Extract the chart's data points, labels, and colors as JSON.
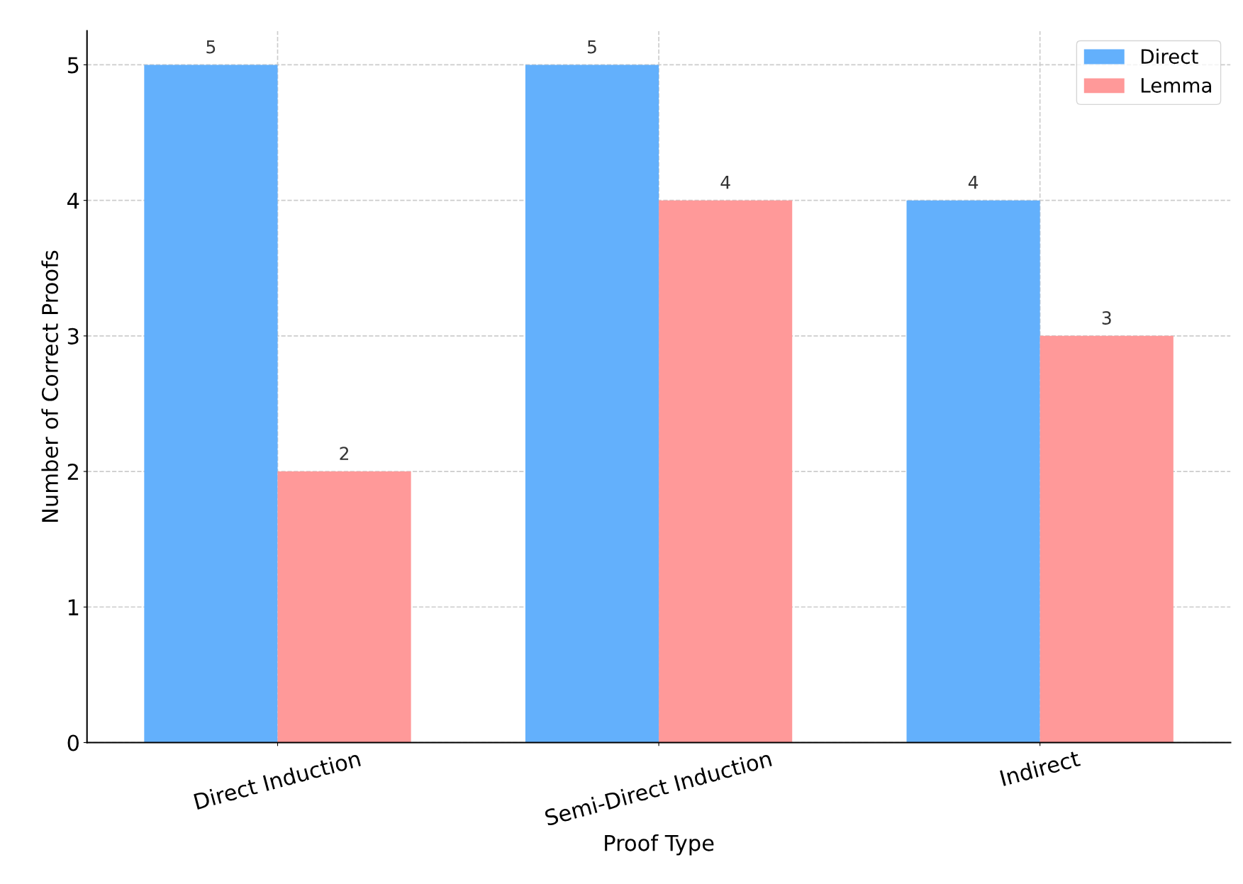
{
  "chart_data": {
    "type": "bar",
    "xlabel": "Proof Type",
    "ylabel": "Number of Correct Proofs",
    "categories": [
      "Direct Induction",
      "Semi-Direct Induction",
      "Indirect"
    ],
    "series": [
      {
        "name": "Direct",
        "color": "#63b0fc",
        "values": [
          5,
          5,
          4
        ]
      },
      {
        "name": "Lemma",
        "color": "#ff9999",
        "values": [
          2,
          4,
          3
        ]
      }
    ],
    "ylim": [
      0,
      5.25
    ],
    "yticks": [
      0,
      1,
      2,
      3,
      4,
      5
    ],
    "grid": true,
    "legend": "top right",
    "data_labels": true
  }
}
